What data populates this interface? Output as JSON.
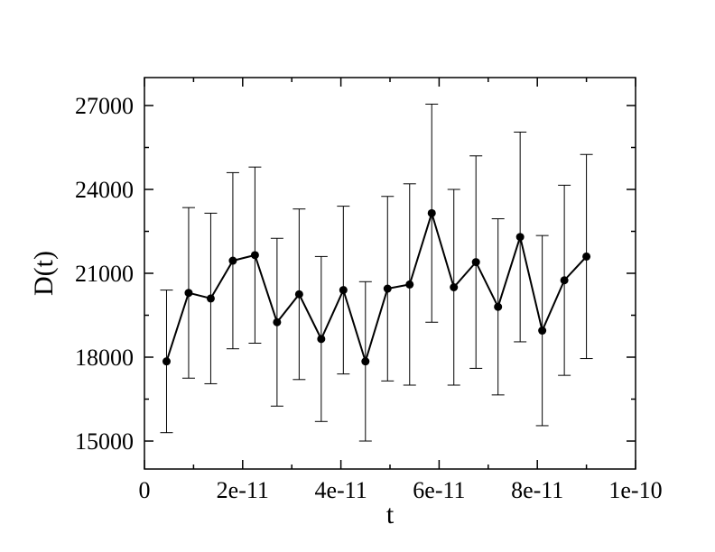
{
  "chart_data": {
    "type": "line",
    "xlabel": "t",
    "ylabel": "D(t)",
    "xlim": [
      0,
      1e-10
    ],
    "ylim": [
      14000,
      28000
    ],
    "x_ticks": [
      0,
      2e-11,
      4e-11,
      6e-11,
      8e-11,
      1e-10
    ],
    "x_tick_labels": [
      "0",
      "2e-11",
      "4e-11",
      "6e-11",
      "8e-11",
      "1e-10"
    ],
    "y_ticks": [
      15000,
      18000,
      21000,
      24000,
      27000
    ],
    "y_tick_labels": [
      "15000",
      "18000",
      "21000",
      "24000",
      "27000"
    ],
    "grid": false,
    "series": [
      {
        "color": "#000000",
        "marker": "circle",
        "x": [
          4.5e-12,
          9e-12,
          1.35e-11,
          1.8e-11,
          2.25e-11,
          2.7e-11,
          3.15e-11,
          3.6e-11,
          4.05e-11,
          4.5e-11,
          4.95e-11,
          5.4e-11,
          5.85e-11,
          6.3e-11,
          6.75e-11,
          7.2e-11,
          7.65e-11,
          8.1e-11,
          8.55e-11,
          9e-11
        ],
        "y": [
          17850,
          20300,
          20100,
          21450,
          21650,
          19250,
          20250,
          18650,
          20400,
          17850,
          20450,
          20600,
          23150,
          20500,
          21400,
          19800,
          22300,
          18950,
          20750,
          21600
        ],
        "error": [
          2550,
          3050,
          3050,
          3150,
          3150,
          3000,
          3050,
          2950,
          3000,
          2850,
          3300,
          3600,
          3900,
          3500,
          3800,
          3150,
          3750,
          3400,
          3400,
          3650
        ]
      }
    ]
  }
}
